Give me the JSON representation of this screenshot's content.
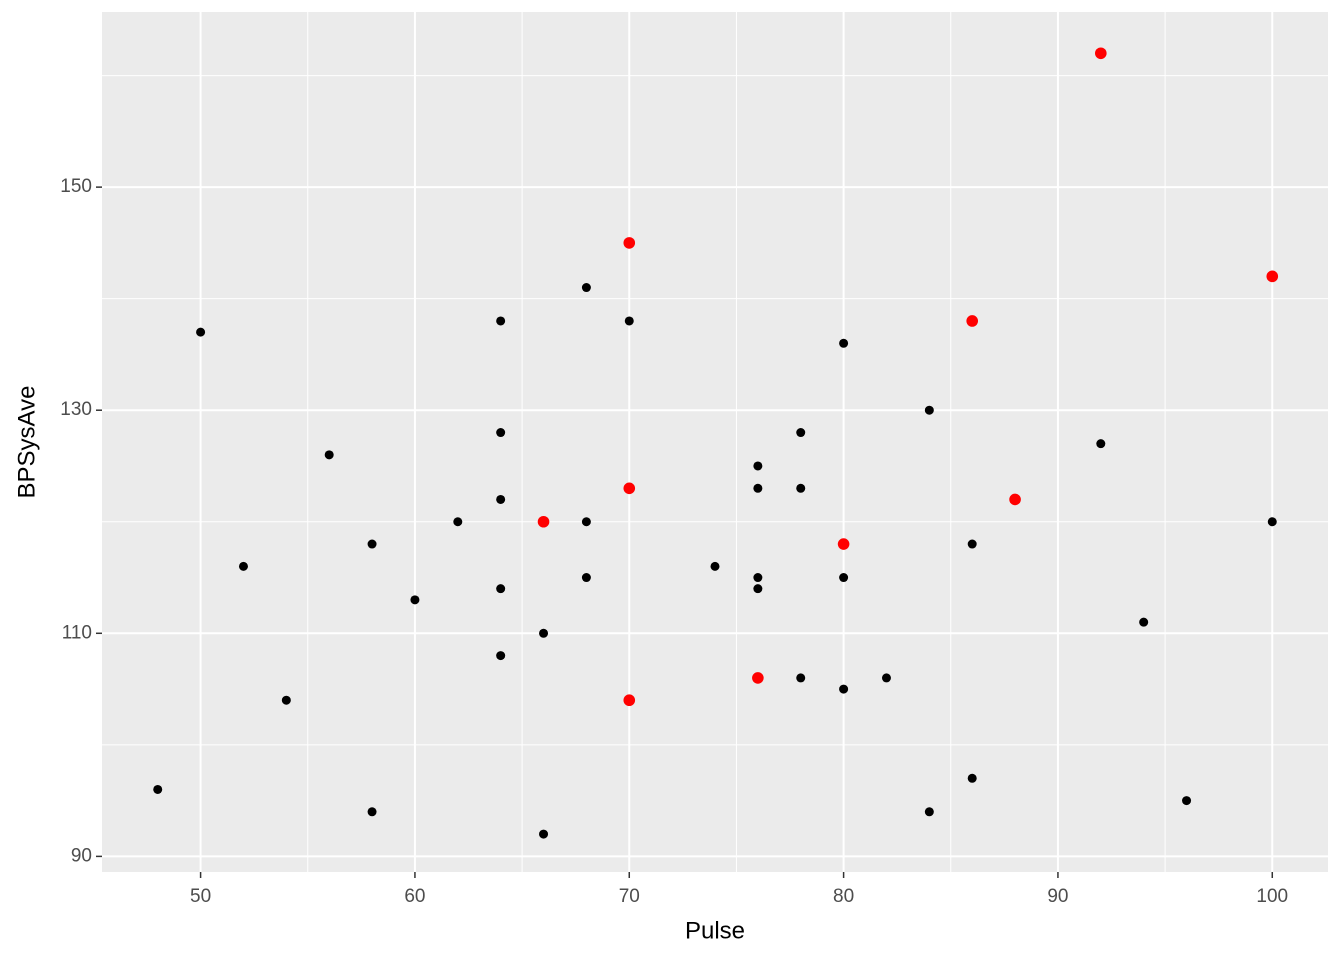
{
  "chart_data": {
    "type": "scatter",
    "x_label": "Pulse",
    "y_label": "BPSysAve",
    "xlim": [
      45.4,
      102.6
    ],
    "ylim": [
      88.6,
      165.7
    ],
    "xticks": [
      50,
      60,
      70,
      80,
      90,
      100
    ],
    "yticks": [
      90,
      110,
      130,
      150
    ],
    "grid": true,
    "minor_grid": true,
    "series": [
      {
        "color": "#000000",
        "x": [
          48,
          50,
          52,
          54,
          56,
          58,
          58,
          60,
          62,
          64,
          64,
          64,
          64,
          64,
          66,
          66,
          68,
          68,
          68,
          70,
          74,
          76,
          76,
          76,
          76,
          78,
          78,
          78,
          80,
          80,
          80,
          82,
          84,
          84,
          86,
          86,
          92,
          94,
          96,
          100
        ],
        "values": [
          96,
          137,
          116,
          104,
          126,
          118,
          94,
          113,
          120,
          138,
          128,
          122,
          114,
          108,
          110,
          92,
          141,
          120,
          115,
          138,
          116,
          125,
          123,
          115,
          114,
          128,
          123,
          106,
          136,
          115,
          105,
          106,
          130,
          94,
          118,
          97,
          127,
          111,
          95,
          120
        ]
      },
      {
        "color": "#ff0000",
        "x": [
          66,
          70,
          70,
          70,
          76,
          80,
          86,
          88,
          92,
          100
        ],
        "values": [
          120,
          145,
          123,
          104,
          106,
          118,
          138,
          122,
          162,
          142
        ]
      }
    ]
  }
}
